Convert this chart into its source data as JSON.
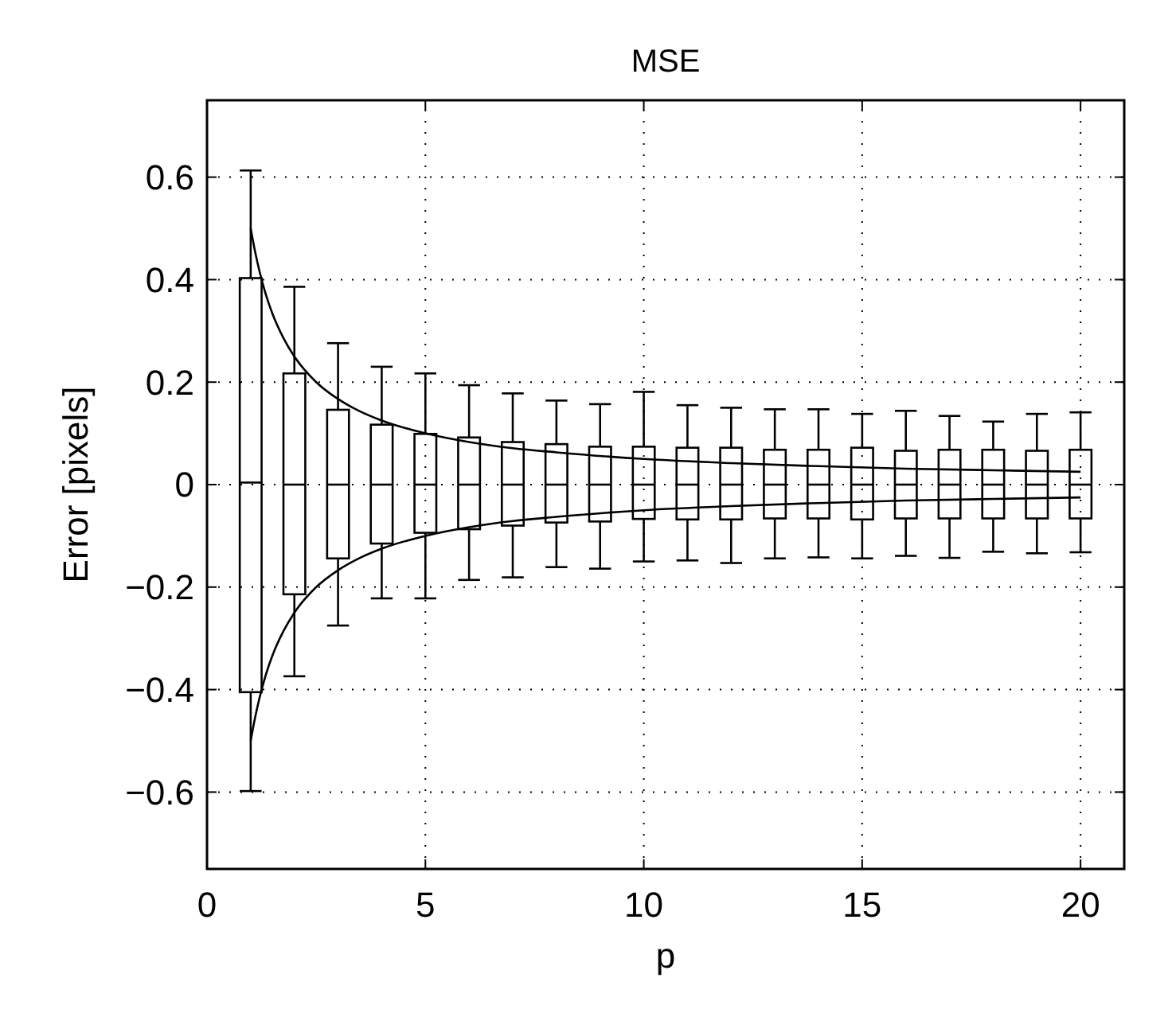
{
  "chart_data": {
    "type": "box",
    "title": "MSE",
    "xlabel": "p",
    "ylabel": "Error [pixels]",
    "x": [
      1,
      2,
      3,
      4,
      5,
      6,
      7,
      8,
      9,
      10,
      11,
      12,
      13,
      14,
      15,
      16,
      17,
      18,
      19,
      20
    ],
    "boxes": [
      {
        "low": -0.598,
        "q1": -0.405,
        "median": 0.004,
        "q3": 0.403,
        "high": 0.613
      },
      {
        "low": -0.374,
        "q1": -0.214,
        "median": 0,
        "q3": 0.217,
        "high": 0.386
      },
      {
        "low": -0.275,
        "q1": -0.144,
        "median": 0,
        "q3": 0.146,
        "high": 0.276
      },
      {
        "low": -0.222,
        "q1": -0.115,
        "median": 0,
        "q3": 0.117,
        "high": 0.23
      },
      {
        "low": -0.222,
        "q1": -0.094,
        "median": 0,
        "q3": 0.099,
        "high": 0.217
      },
      {
        "low": -0.186,
        "q1": -0.087,
        "median": 0,
        "q3": 0.092,
        "high": 0.194
      },
      {
        "low": -0.181,
        "q1": -0.08,
        "median": 0,
        "q3": 0.083,
        "high": 0.178
      },
      {
        "low": -0.161,
        "q1": -0.074,
        "median": 0,
        "q3": 0.079,
        "high": 0.164
      },
      {
        "low": -0.164,
        "q1": -0.072,
        "median": 0,
        "q3": 0.074,
        "high": 0.157
      },
      {
        "low": -0.15,
        "q1": -0.067,
        "median": 0,
        "q3": 0.074,
        "high": 0.181
      },
      {
        "low": -0.148,
        "q1": -0.068,
        "median": 0,
        "q3": 0.072,
        "high": 0.155
      },
      {
        "low": -0.153,
        "q1": -0.068,
        "median": 0,
        "q3": 0.072,
        "high": 0.15
      },
      {
        "low": -0.144,
        "q1": -0.066,
        "median": 0,
        "q3": 0.068,
        "high": 0.147
      },
      {
        "low": -0.142,
        "q1": -0.066,
        "median": 0,
        "q3": 0.068,
        "high": 0.147
      },
      {
        "low": -0.144,
        "q1": -0.068,
        "median": 0,
        "q3": 0.072,
        "high": 0.138
      },
      {
        "low": -0.139,
        "q1": -0.066,
        "median": 0,
        "q3": 0.066,
        "high": 0.144
      },
      {
        "low": -0.143,
        "q1": -0.066,
        "median": 0,
        "q3": 0.068,
        "high": 0.134
      },
      {
        "low": -0.131,
        "q1": -0.066,
        "median": 0,
        "q3": 0.068,
        "high": 0.123
      },
      {
        "low": -0.134,
        "q1": -0.066,
        "median": 0,
        "q3": 0.066,
        "high": 0.138
      },
      {
        "low": -0.132,
        "q1": -0.066,
        "median": 0,
        "q3": 0.068,
        "high": 0.141
      }
    ],
    "series": [
      {
        "type": "line",
        "color": "#000000",
        "x": [
          1,
          1.1,
          1.2,
          1.35,
          1.5,
          1.75,
          2,
          2.5,
          3,
          3.5,
          4,
          5,
          6,
          7,
          8,
          10,
          12,
          14,
          16,
          18,
          20
        ],
        "values": [
          0.5,
          0.455,
          0.417,
          0.37,
          0.333,
          0.286,
          0.25,
          0.2,
          0.167,
          0.143,
          0.125,
          0.1,
          0.083,
          0.071,
          0.063,
          0.05,
          0.042,
          0.036,
          0.031,
          0.028,
          0.025
        ]
      },
      {
        "type": "line",
        "color": "#000000",
        "x": [
          1,
          1.1,
          1.2,
          1.35,
          1.5,
          1.75,
          2,
          2.5,
          3,
          3.5,
          4,
          5,
          6,
          7,
          8,
          10,
          12,
          14,
          16,
          18,
          20
        ],
        "values": [
          -0.5,
          -0.455,
          -0.417,
          -0.37,
          -0.333,
          -0.286,
          -0.25,
          -0.2,
          -0.167,
          -0.143,
          -0.125,
          -0.1,
          -0.083,
          -0.071,
          -0.063,
          -0.05,
          -0.042,
          -0.036,
          -0.031,
          -0.028,
          -0.025
        ]
      }
    ],
    "xlim": [
      0,
      21
    ],
    "xticks": [
      0,
      5,
      10,
      15,
      20
    ],
    "ylim": [
      -0.75,
      0.75
    ],
    "yticks": [
      {
        "value": -0.6,
        "label": "−0.6"
      },
      {
        "value": -0.4,
        "label": "−0.4"
      },
      {
        "value": -0.2,
        "label": "−0.2"
      },
      0,
      0.2,
      0.4,
      0.6
    ],
    "grid": true,
    "line_style": "solid"
  }
}
